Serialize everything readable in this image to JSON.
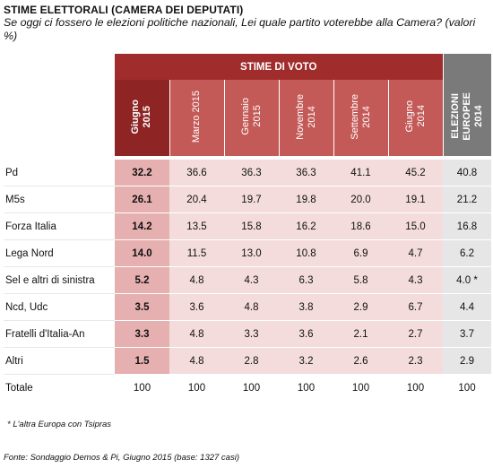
{
  "header": {
    "title": "STIME ELETTORALI (CAMERA DEI DEPUTATI)",
    "subtitle": "Se oggi ci fossero le elezioni politiche nazionali, Lei quale partito voterebbe alla Camera? (valori %)"
  },
  "table": {
    "banner": "STIME DI VOTO",
    "columns": [
      "Giugno\n2015",
      "Marzo 2015",
      "Gennaio\n2015",
      "Novembre\n2014",
      "Settembre\n2014",
      "Giugno\n2014",
      "ELEZIONI\nEUROPEE\n2014"
    ],
    "rows": [
      {
        "label": "Pd",
        "values": [
          "32.2",
          "36.6",
          "36.3",
          "36.3",
          "41.1",
          "45.2",
          "40.8"
        ]
      },
      {
        "label": "M5s",
        "values": [
          "26.1",
          "20.4",
          "19.7",
          "19.8",
          "20.0",
          "19.1",
          "21.2"
        ]
      },
      {
        "label": "Forza Italia",
        "values": [
          "14.2",
          "13.5",
          "15.8",
          "16.2",
          "18.6",
          "15.0",
          "16.8"
        ]
      },
      {
        "label": "Lega Nord",
        "values": [
          "14.0",
          "11.5",
          "13.0",
          "10.8",
          "6.9",
          "4.7",
          "6.2"
        ]
      },
      {
        "label": "Sel e altri di sinistra",
        "values": [
          "5.2",
          "4.8",
          "4.3",
          "6.3",
          "5.8",
          "4.3",
          "4.0 *"
        ]
      },
      {
        "label": "Ncd, Udc",
        "values": [
          "3.5",
          "3.6",
          "4.8",
          "3.8",
          "2.9",
          "6.7",
          "4.4"
        ]
      },
      {
        "label": "Fratelli d'Italia-An",
        "values": [
          "3.3",
          "4.8",
          "3.3",
          "3.6",
          "2.1",
          "2.7",
          "3.7"
        ]
      },
      {
        "label": "Altri",
        "values": [
          "1.5",
          "4.8",
          "2.8",
          "3.2",
          "2.6",
          "2.3",
          "2.9"
        ]
      }
    ],
    "total": {
      "label": "Totale",
      "values": [
        "100",
        "100",
        "100",
        "100",
        "100",
        "100",
        "100"
      ]
    }
  },
  "footnote": "* L'altra Europa con Tsipras",
  "source": "Fonte: Sondaggio Demos & Pi, Giugno 2015 (base: 1327 casi)",
  "colors": {
    "banner": "#a02c2c",
    "header": "#c45a57",
    "header_current": "#8e2424",
    "header_europee": "#7a7a7a",
    "cell": "#f4dcdc",
    "cell_current": "#e6b0b0",
    "cell_europee": "#e6e6e6"
  }
}
